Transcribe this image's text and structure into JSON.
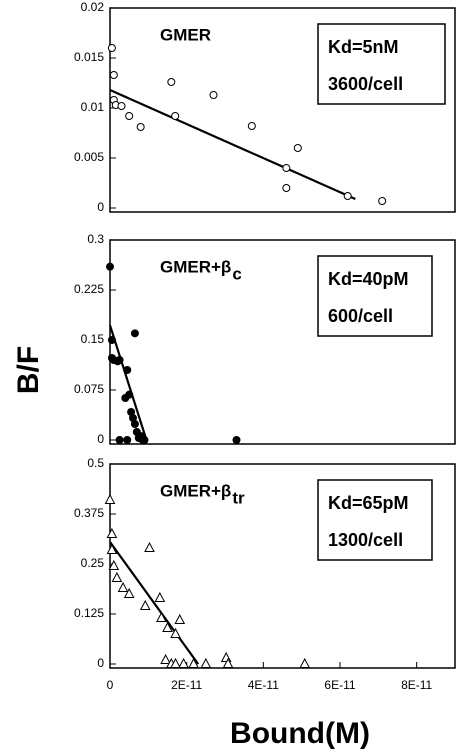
{
  "chart_data": [
    {
      "type": "scatter",
      "label": "GMER",
      "box_lines": [
        "Kd=5nM",
        "3600/cell"
      ],
      "points": {
        "marker": "circle-open",
        "x": [
          5e-13,
          1e-12,
          1e-12,
          1.5e-12,
          3e-12,
          5e-12,
          8e-12,
          1.6e-11,
          1.7e-11,
          2.7e-11,
          3.7e-11,
          4.9e-11,
          4.6e-11,
          4.6e-11,
          6.2e-11,
          7.1e-11
        ],
        "values": [
          0.016,
          0.0133,
          0.0108,
          0.0103,
          0.0102,
          0.0092,
          0.0081,
          0.0126,
          0.0092,
          0.0113,
          0.0082,
          0.006,
          0.004,
          0.002,
          0.0012,
          0.0007
        ]
      },
      "fit_line": {
        "x": [
          0,
          6.4e-11
        ],
        "values": [
          0.0118,
          0.0009
        ]
      },
      "xlim": [
        0,
        9e-11
      ],
      "ylim": [
        0,
        0.02
      ],
      "yticks": [
        0,
        0.005,
        0.01,
        0.015,
        0.02
      ],
      "color": "#000000"
    },
    {
      "type": "scatter",
      "label": "GMER+β",
      "label_subscript": "c",
      "box_lines": [
        "Kd=40pM",
        "600/cell"
      ],
      "ylabel": "B/F",
      "points": {
        "marker": "circle-filled",
        "x": [
          0,
          5e-13,
          5e-13,
          1e-12,
          2e-12,
          2.5e-12,
          4e-12,
          4.5e-12,
          5e-12,
          5.5e-12,
          6e-12,
          6.5e-12,
          7e-12,
          7.5e-12,
          8e-12,
          8.5e-12,
          9e-12,
          6.5e-12,
          4.5e-12,
          2.5e-12,
          3.3e-11
        ],
        "values": [
          0.26,
          0.15,
          0.123,
          0.12,
          0.118,
          0.12,
          0.063,
          0.105,
          0.068,
          0.042,
          0.033,
          0.024,
          0.012,
          0.003,
          0.006,
          0,
          0,
          0.16,
          0,
          0,
          0
        ]
      },
      "fit_line": {
        "x": [
          0,
          9.5e-12
        ],
        "values": [
          0.172,
          0
        ]
      },
      "xlim": [
        0,
        9e-11
      ],
      "ylim": [
        0,
        0.3
      ],
      "yticks": [
        0,
        0.075,
        0.15,
        0.225,
        0.3
      ],
      "color": "#000000"
    },
    {
      "type": "scatter",
      "label": "GMER+β",
      "label_subscript": "tr",
      "box_lines": [
        "Kd=65pM",
        "1300/cell"
      ],
      "xlabel": "Bound(M)",
      "points": {
        "marker": "triangle-open",
        "x": [
          0,
          5e-13,
          5e-13,
          1e-12,
          1.8e-12,
          3.4e-12,
          5e-12,
          9.2e-12,
          1.03e-11,
          1.3e-11,
          1.34e-11,
          1.5e-11,
          1.71e-11,
          1.82e-11,
          1.45e-11,
          1.6e-11,
          1.71e-11,
          1.92e-11,
          2.18e-11,
          2.5e-11,
          3.03e-11,
          3.08e-11,
          5.08e-11
        ],
        "values": [
          0.41,
          0.325,
          0.285,
          0.245,
          0.215,
          0.19,
          0.175,
          0.145,
          0.29,
          0.165,
          0.115,
          0.09,
          0.075,
          0.11,
          0.01,
          0,
          0,
          0,
          0,
          0,
          0.015,
          0,
          0
        ]
      },
      "fit_line": {
        "x": [
          0,
          2.3e-11
        ],
        "values": [
          0.305,
          0
        ]
      },
      "xlim": [
        0,
        9e-11
      ],
      "ylim": [
        0,
        0.5
      ],
      "yticks": [
        0,
        0.125,
        0.25,
        0.375,
        0.5
      ],
      "xticks": [
        0,
        {
          "value": 2e-11,
          "label": "2E-11"
        },
        {
          "value": 4e-11,
          "label": "4E-11"
        },
        {
          "value": 6e-11,
          "label": "6E-11"
        },
        {
          "value": 8e-11,
          "label": "8E-11"
        }
      ],
      "color": "#000000"
    }
  ]
}
